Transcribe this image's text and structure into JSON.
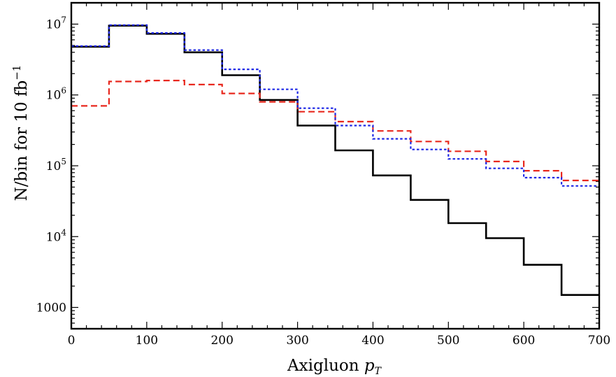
{
  "chart_data": {
    "type": "line",
    "step": true,
    "xlabel": "Axigluon",
    "xlabel_var": "p",
    "xlabel_sub": "T",
    "ylabel": "N/bin for 10 fb",
    "ylabel_sup": "−1",
    "x_ticks": [
      0,
      100,
      200,
      300,
      400,
      500,
      600,
      700
    ],
    "xlim": [
      0,
      700
    ],
    "ylim": [
      500,
      20000000
    ],
    "y_scale": "log",
    "y_ticks": [
      {
        "value": 1000,
        "base": "1000",
        "exp": ""
      },
      {
        "value": 10000,
        "base": "10",
        "exp": "4"
      },
      {
        "value": 100000,
        "base": "10",
        "exp": "5"
      },
      {
        "value": 1000000,
        "base": "10",
        "exp": "6"
      },
      {
        "value": 10000000,
        "base": "10",
        "exp": "7"
      }
    ],
    "bin_edges": [
      0,
      50,
      100,
      150,
      200,
      250,
      300,
      350,
      400,
      450,
      500,
      550,
      600,
      650,
      700
    ],
    "series": [
      {
        "style": "solid",
        "color": "#000000",
        "values": [
          4800000,
          9500000,
          7300000,
          4000000,
          1900000,
          850000,
          370000,
          165000,
          73000,
          33000,
          15500,
          9500,
          4000,
          1500
        ]
      },
      {
        "style": "dashed",
        "color": "#e8281e",
        "values": [
          700000,
          1550000,
          1600000,
          1400000,
          1050000,
          800000,
          580000,
          420000,
          310000,
          220000,
          160000,
          115000,
          85000,
          62000
        ]
      },
      {
        "style": "dotted",
        "color": "#1e28e6",
        "values": [
          4900000,
          9700000,
          7500000,
          4300000,
          2300000,
          1200000,
          650000,
          370000,
          240000,
          170000,
          125000,
          92000,
          68000,
          52000
        ]
      }
    ]
  }
}
